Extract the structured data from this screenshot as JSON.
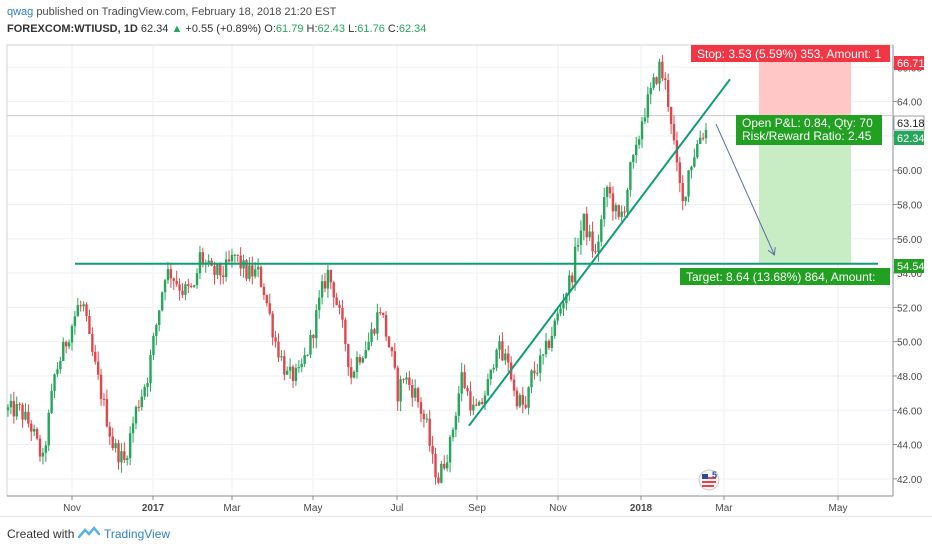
{
  "header": {
    "author": "qwag",
    "published": "published on TradingView.com, February 18, 2018 21:20 EST",
    "symbol": "FOREXCOM:WTIUSD, 1D",
    "last": "62.34",
    "change": "+0.55 (+0.89%)",
    "o_label": "O:",
    "o": "61.79",
    "h_label": "H:",
    "h": "62.43",
    "l_label": "L:",
    "l": "61.76",
    "c_label": "C:",
    "c": "62.34"
  },
  "footer": {
    "created_with": "Created with",
    "brand": "TradingView"
  },
  "colors": {
    "up": "#26a65b",
    "down": "#e0474c",
    "trend": "#0f9d76",
    "stop_fill": "#ffc8c6",
    "target_fill": "#c8ecc4",
    "stop_label": "#f23645",
    "target_label": "#22a022"
  },
  "chart_data": {
    "type": "candlestick",
    "ylim": [
      41.0,
      67.3
    ],
    "y_ticks": [
      "42.00",
      "44.00",
      "46.00",
      "48.00",
      "50.00",
      "52.00",
      "54.00",
      "56.00",
      "58.00",
      "60.00",
      "62.00",
      "64.00",
      "66.00"
    ],
    "x_ticks": [
      "Nov",
      "2017",
      "Mar",
      "May",
      "Jul",
      "Sep",
      "Nov",
      "2018",
      "Mar",
      "May"
    ],
    "price_labels": {
      "stop": "66.71",
      "entry": "63.18",
      "last": "62.34",
      "target": "54.54"
    },
    "stop_label": "Stop: 3.53 (5.59%) 353, Amount: 1",
    "pl_label": "Open P&L: 0.84, Qty: 70",
    "rr_label": "Risk/Reward Ratio: 2.45",
    "target_label": "Target: 8.64 (13.68%) 864, Amount:",
    "horizontal_level": 54.54,
    "trendline": {
      "from": [
        "Sep 2017",
        45.1
      ],
      "to": [
        "Feb 2018",
        65.3
      ]
    },
    "price_path": [
      [
        46,
        0
      ],
      [
        46,
        4
      ],
      [
        45,
        8
      ],
      [
        43,
        12
      ],
      [
        48,
        16
      ],
      [
        50,
        20
      ],
      [
        52,
        24
      ],
      [
        52,
        26
      ],
      [
        50,
        28
      ],
      [
        47,
        32
      ],
      [
        44,
        36
      ],
      [
        43,
        40
      ],
      [
        46,
        44
      ],
      [
        48,
        48
      ],
      [
        52,
        52
      ],
      [
        54,
        54
      ],
      [
        54,
        56
      ],
      [
        53,
        60
      ],
      [
        53,
        64
      ],
      [
        55,
        66
      ],
      [
        54,
        70
      ],
      [
        54,
        74
      ],
      [
        55,
        78
      ],
      [
        54,
        82
      ],
      [
        54,
        84
      ],
      [
        54,
        86
      ],
      [
        53,
        88
      ],
      [
        50,
        92
      ],
      [
        48,
        96
      ],
      [
        48,
        100
      ],
      [
        50,
        104
      ],
      [
        53,
        108
      ],
      [
        54,
        110
      ],
      [
        53,
        112
      ],
      [
        50,
        116
      ],
      [
        48,
        118
      ],
      [
        49,
        120
      ],
      [
        50,
        124
      ],
      [
        51,
        126
      ],
      [
        52,
        128
      ],
      [
        49,
        132
      ],
      [
        47,
        134
      ],
      [
        48,
        136
      ],
      [
        47,
        140
      ],
      [
        46,
        142
      ],
      [
        45,
        144
      ],
      [
        43,
        146
      ],
      [
        42,
        148
      ],
      [
        43,
        150
      ],
      [
        44,
        152
      ],
      [
        46,
        154
      ],
      [
        48,
        156
      ],
      [
        47,
        158
      ],
      [
        46,
        160
      ],
      [
        46,
        162
      ],
      [
        48,
        166
      ],
      [
        50,
        168
      ],
      [
        49,
        170
      ],
      [
        49,
        172
      ],
      [
        47,
        174
      ],
      [
        46,
        178
      ],
      [
        48,
        180
      ],
      [
        49,
        184
      ],
      [
        50,
        186
      ],
      [
        51,
        188
      ],
      [
        52,
        190
      ],
      [
        53,
        192
      ],
      [
        54,
        194
      ],
      [
        56,
        196
      ],
      [
        57,
        198
      ],
      [
        56,
        200
      ],
      [
        55,
        202
      ],
      [
        57,
        204
      ],
      [
        59,
        206
      ],
      [
        58,
        208
      ],
      [
        57,
        210
      ],
      [
        58,
        212
      ],
      [
        60,
        214
      ],
      [
        61,
        216
      ],
      [
        63,
        218
      ],
      [
        64,
        220
      ],
      [
        65,
        222
      ],
      [
        66,
        224
      ],
      [
        65,
        226
      ],
      [
        63,
        228
      ],
      [
        60,
        230
      ],
      [
        58,
        232
      ],
      [
        60,
        234
      ],
      [
        61,
        236
      ],
      [
        62,
        238
      ],
      [
        62.34,
        240
      ]
    ]
  }
}
